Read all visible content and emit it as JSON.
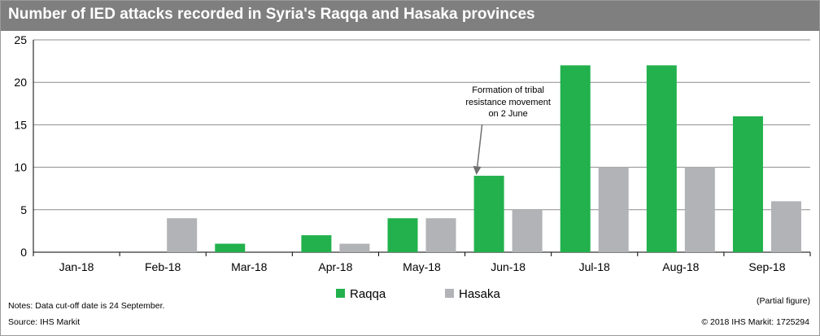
{
  "title": "Number of IED attacks recorded in Syria's Raqqa and Hasaka provinces",
  "chart_data": {
    "type": "bar",
    "categories": [
      "Jan-18",
      "Feb-18",
      "Mar-18",
      "Apr-18",
      "May-18",
      "Jun-18",
      "Jul-18",
      "Aug-18",
      "Sep-18"
    ],
    "series": [
      {
        "name": "Raqqa",
        "color": "#22b14c",
        "values": [
          0,
          0,
          1,
          2,
          4,
          9,
          22,
          22,
          16
        ]
      },
      {
        "name": "Hasaka",
        "color": "#b1b3b6",
        "values": [
          0,
          4,
          0,
          1,
          4,
          5,
          10,
          10,
          6
        ]
      }
    ],
    "ylim": [
      0,
      25
    ],
    "yticks": [
      0,
      5,
      10,
      15,
      20,
      25
    ],
    "grid": true,
    "legend": "bottom",
    "annotation": {
      "lines": [
        "Formation of tribal",
        "resistance movement",
        "on 2 June"
      ],
      "category": "Jun-18"
    },
    "note_partial": "(Partial figure)"
  },
  "footer": {
    "notes": "Notes: Data cut-off date is 24 September.",
    "source": "Source: IHS Markit",
    "copyright": "© 2018 IHS Markit: 1725294"
  }
}
